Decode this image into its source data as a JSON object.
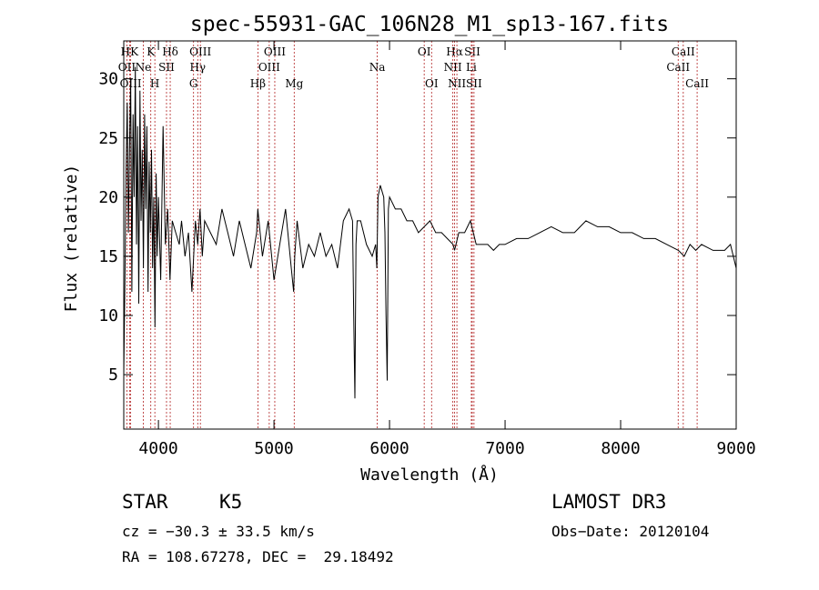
{
  "chart_data": {
    "type": "line",
    "title": "spec-55931-GAC_106N28_M1_sp13-167.fits",
    "xlabel": "Wavelength (Å)",
    "ylabel": "Flux (relative)",
    "xlim": [
      3700,
      9000
    ],
    "ylim": [
      0.4,
      33.2
    ],
    "x_ticks": [
      4000,
      5000,
      6000,
      7000,
      8000,
      9000
    ],
    "y_ticks": [
      5,
      10,
      15,
      20,
      25,
      30
    ],
    "grid": false,
    "line_color": "#000000",
    "marker_color": "#b22222",
    "series": [
      {
        "x": [
          3700,
          3710,
          3720,
          3730,
          3740,
          3750,
          3760,
          3770,
          3780,
          3790,
          3800,
          3810,
          3820,
          3830,
          3840,
          3850,
          3860,
          3870,
          3880,
          3890,
          3900,
          3910,
          3920,
          3930,
          3940,
          3950,
          3960,
          3970,
          3980,
          3990,
          4000,
          4020,
          4040,
          4060,
          4080,
          4100,
          4120,
          4150,
          4180,
          4200,
          4230,
          4260,
          4290,
          4320,
          4340,
          4360,
          4380,
          4400,
          4450,
          4500,
          4550,
          4600,
          4650,
          4700,
          4750,
          4800,
          4850,
          4860,
          4900,
          4950,
          5000,
          5050,
          5100,
          5150,
          5170,
          5180,
          5200,
          5250,
          5300,
          5350,
          5400,
          5450,
          5500,
          5550,
          5600,
          5650,
          5680,
          5690,
          5700,
          5710,
          5720,
          5750,
          5800,
          5850,
          5880,
          5890,
          5900,
          5920,
          5950,
          5960,
          5970,
          5980,
          5990,
          6000,
          6050,
          6100,
          6150,
          6200,
          6250,
          6300,
          6350,
          6400,
          6450,
          6500,
          6550,
          6563,
          6600,
          6650,
          6700,
          6750,
          6800,
          6850,
          6900,
          6950,
          7000,
          7100,
          7200,
          7300,
          7400,
          7500,
          7600,
          7700,
          7800,
          7900,
          8000,
          8100,
          8200,
          8300,
          8400,
          8500,
          8550,
          8600,
          8650,
          8700,
          8800,
          8900,
          8950,
          9000
        ],
        "y": [
          5,
          13,
          22,
          28,
          17,
          24,
          30,
          12,
          27,
          20,
          31,
          16,
          26,
          11,
          29,
          18,
          24,
          14,
          27,
          19,
          26,
          12,
          23,
          17,
          24,
          14,
          20,
          9,
          22,
          15,
          20,
          13,
          26,
          16,
          19,
          13,
          18,
          17,
          16,
          18,
          15,
          17,
          12,
          18,
          16,
          19,
          15,
          18,
          17,
          16,
          19,
          17,
          15,
          18,
          16,
          14,
          17,
          19,
          15,
          18,
          13,
          16,
          19,
          14,
          12,
          15,
          18,
          14,
          16,
          15,
          17,
          15,
          16,
          14,
          18,
          19,
          18,
          10,
          3,
          16,
          18,
          18,
          16,
          15,
          16,
          14,
          20,
          21,
          20,
          17,
          10,
          4.5,
          19,
          20,
          19,
          19,
          18,
          18,
          17,
          17.5,
          18,
          17,
          17,
          16.5,
          16,
          15.5,
          17,
          17,
          18,
          16,
          16,
          16,
          15.5,
          16,
          16,
          16.5,
          16.5,
          17,
          17.5,
          17,
          17,
          18,
          17.5,
          17.5,
          17,
          17,
          16.5,
          16.5,
          16,
          15.5,
          15,
          16,
          15.5,
          16,
          15.5,
          15.5,
          16,
          14
        ]
      }
    ],
    "line_markers": [
      {
        "label": "HK",
        "wavelength": 3750,
        "row": 1
      },
      {
        "label": "OII",
        "wavelength": 3727,
        "row": 2
      },
      {
        "label": "OIII",
        "wavelength": 3760,
        "row": 3
      },
      {
        "label": "Ne",
        "wavelength": 3869,
        "row": 2
      },
      {
        "label": "K",
        "wavelength": 3934,
        "row": 1
      },
      {
        "label": "H",
        "wavelength": 3969,
        "row": 3
      },
      {
        "label": "Hδ",
        "wavelength": 4102,
        "row": 1
      },
      {
        "label": "SII",
        "wavelength": 4070,
        "row": 2
      },
      {
        "label": "OIII",
        "wavelength": 4363,
        "row": 1
      },
      {
        "label": "Hγ",
        "wavelength": 4340,
        "row": 2
      },
      {
        "label": "G",
        "wavelength": 4304,
        "row": 3
      },
      {
        "label": "Hβ",
        "wavelength": 4861,
        "row": 3
      },
      {
        "label": "OIII",
        "wavelength": 5007,
        "row": 1
      },
      {
        "label": "OIII",
        "wavelength": 4959,
        "row": 2
      },
      {
        "label": "Mg",
        "wavelength": 5175,
        "row": 3
      },
      {
        "label": "Na",
        "wavelength": 5894,
        "row": 2
      },
      {
        "label": "OI",
        "wavelength": 6300,
        "row": 1
      },
      {
        "label": "OI",
        "wavelength": 6364,
        "row": 3
      },
      {
        "label": "Hα",
        "wavelength": 6563,
        "row": 1
      },
      {
        "label": "SII",
        "wavelength": 6716,
        "row": 1
      },
      {
        "label": "NII",
        "wavelength": 6548,
        "row": 2
      },
      {
        "label": "Li",
        "wavelength": 6708,
        "row": 2
      },
      {
        "label": "NII",
        "wavelength": 6583,
        "row": 3
      },
      {
        "label": "SII",
        "wavelength": 6731,
        "row": 3
      },
      {
        "label": "CaII",
        "wavelength": 8542,
        "row": 1
      },
      {
        "label": "CaII",
        "wavelength": 8498,
        "row": 2
      },
      {
        "label": "CaII",
        "wavelength": 8662,
        "row": 3
      }
    ]
  },
  "info": {
    "class": "STAR",
    "subclass": "K5",
    "survey": "LAMOST DR3",
    "cz": "cz = −30.3 ± 33.5 km/s",
    "obs_date": "Obs−Date: 20120104",
    "radec": "RA = 108.67278, DEC =  29.18492"
  }
}
